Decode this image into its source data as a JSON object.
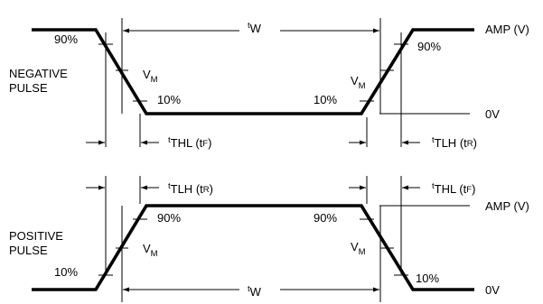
{
  "negative": {
    "title_line1": "NEGATIVE",
    "title_line2": "PULSE",
    "pct_90_left": "90%",
    "pct_10_left": "10%",
    "pct_10_right": "10%",
    "pct_90_right": "90%",
    "vm": "V",
    "vm_sub": "M",
    "amp": "AMP (V)",
    "zero": "0V",
    "tw_pre": "t",
    "tw_sub": "W",
    "tf": {
      "pre": "t",
      "sub": "THL",
      "paren_pre": " (t",
      "paren_sub": "F",
      "close": ")"
    },
    "tr": {
      "pre": "t",
      "sub": "TLH",
      "paren_pre": " (t",
      "paren_sub": "R",
      "close": ")"
    }
  },
  "positive": {
    "title_line1": "POSITIVE",
    "title_line2": "PULSE",
    "pct_10_left": "10%",
    "pct_90_left": "90%",
    "pct_90_right": "90%",
    "pct_10_right": "10%",
    "vm": "V",
    "vm_sub": "M",
    "amp": "AMP (V)",
    "zero": "0V",
    "tw_pre": "t",
    "tw_sub": "W",
    "tr": {
      "pre": "t",
      "sub": "TLH",
      "paren_pre": " (t",
      "paren_sub": "R",
      "close": ")"
    },
    "tf": {
      "pre": "t",
      "sub": "THL",
      "paren_pre": " (t",
      "paren_sub": "F",
      "close": ")"
    }
  }
}
